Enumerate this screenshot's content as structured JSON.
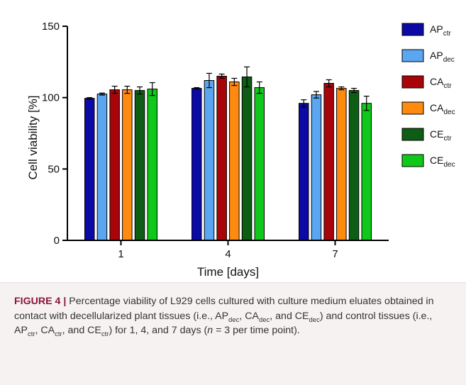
{
  "chart_data": {
    "type": "bar",
    "categories": [
      "1",
      "4",
      "7"
    ],
    "series": [
      {
        "name": "AP",
        "sub": "ctr",
        "color": "#0b0aa6",
        "values": [
          99.5,
          106.5,
          96
        ],
        "errors": [
          0.5,
          0.5,
          2.5
        ]
      },
      {
        "name": "AP",
        "sub": "dec",
        "color": "#5aa6f0",
        "values": [
          102.5,
          112,
          102
        ],
        "errors": [
          0.7,
          5,
          2.3
        ]
      },
      {
        "name": "CA",
        "sub": "ctr",
        "color": "#a8050b",
        "values": [
          105.5,
          115,
          110
        ],
        "errors": [
          2.5,
          1.5,
          2.5
        ]
      },
      {
        "name": "CA",
        "sub": "dec",
        "color": "#ff8a10",
        "values": [
          105.5,
          111,
          106.5
        ],
        "errors": [
          2.5,
          2.5,
          1
        ]
      },
      {
        "name": "CE",
        "sub": "ctr",
        "color": "#0d5e14",
        "values": [
          105,
          114.5,
          105
        ],
        "errors": [
          2.5,
          7,
          1.5
        ]
      },
      {
        "name": "CE",
        "sub": "dec",
        "color": "#10c81a",
        "values": [
          106,
          107,
          96
        ],
        "errors": [
          4.5,
          4,
          5
        ]
      }
    ],
    "xlabel": "Time [days]",
    "ylabel": "Cell viability [%]",
    "ylim": [
      0,
      150
    ],
    "yticks": [
      0,
      50,
      100,
      150
    ],
    "grid": false,
    "legend_position": "right"
  },
  "caption": {
    "label": "FIGURE 4 |",
    "text_1": " Percentage viability of L929 cells cultured with culture medium eluates obtained in contact with decellularized plant tissues (i.e., AP",
    "sub_1": "dec",
    "text_2": ", CA",
    "sub_2": "dec",
    "text_3": ", and CE",
    "sub_3": "dec",
    "text_4": ") and control tissues (i.e., AP",
    "sub_4": "ctr",
    "text_5": ", CA",
    "sub_5": "ctr",
    "text_6": ", and CE",
    "sub_6": "ctr",
    "text_7": ") for 1, 4, and 7 days (",
    "italic_n": "n",
    "text_8": " = 3 per time point)."
  }
}
